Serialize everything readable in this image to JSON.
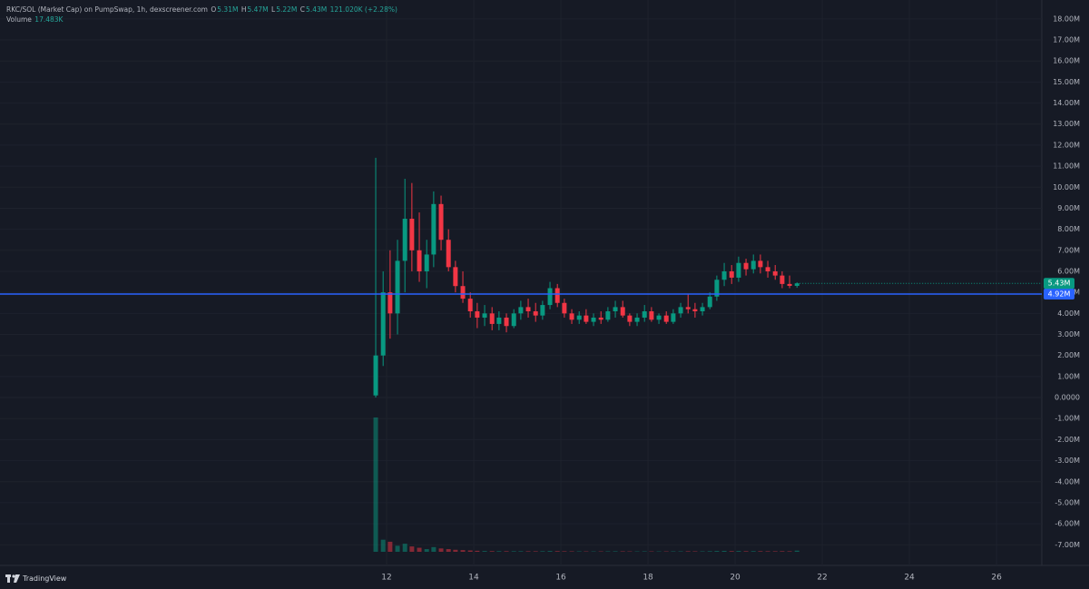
{
  "header": {
    "symbol": "RKC/SOL (Market Cap) on PumpSwap, 1h, dexscreener.com",
    "o_label": "O",
    "open": "5.31M",
    "h_label": "H",
    "high": "5.47M",
    "l_label": "L",
    "low": "5.22M",
    "c_label": "C",
    "close": "5.43M",
    "change": "121.020K (+2.28%)",
    "volume_label": "Volume",
    "volume": "17.483K"
  },
  "footer": {
    "brand": "TradingView"
  },
  "chart_data": {
    "type": "candlestick",
    "x": [
      11.75,
      11.92,
      12.08,
      12.25,
      12.42,
      12.58,
      12.75,
      12.92,
      13.08,
      13.25,
      13.42,
      13.58,
      13.75,
      13.92,
      14.08,
      14.25,
      14.42,
      14.58,
      14.75,
      14.92,
      15.08,
      15.25,
      15.42,
      15.58,
      15.75,
      15.92,
      16.08,
      16.25,
      16.42,
      16.58,
      16.75,
      16.92,
      17.08,
      17.25,
      17.42,
      17.58,
      17.75,
      17.92,
      18.08,
      18.25,
      18.42,
      18.58,
      18.75,
      18.92,
      19.08,
      19.25,
      19.42,
      19.58,
      19.75,
      19.92,
      20.08,
      20.25,
      20.42,
      20.58,
      20.75,
      20.92,
      21.08,
      21.25,
      21.42
    ],
    "open": [
      0.1,
      2,
      5,
      4,
      6.5,
      8.5,
      7,
      6,
      6.8,
      9.2,
      7.5,
      6.2,
      5.3,
      4.7,
      4.1,
      3.8,
      4,
      3.5,
      3.8,
      3.4,
      4,
      4.3,
      4.1,
      3.9,
      4.4,
      5.2,
      4.5,
      4,
      3.7,
      3.9,
      3.6,
      3.8,
      3.7,
      4.1,
      4.3,
      3.9,
      3.6,
      3.8,
      4.1,
      3.7,
      3.9,
      3.6,
      4,
      4.3,
      4.2,
      4.1,
      4.3,
      4.8,
      5.6,
      6,
      5.7,
      6.4,
      6.1,
      6.5,
      6.2,
      6,
      5.8,
      5.4,
      5.31
    ],
    "high": [
      11.4,
      6,
      7,
      7.5,
      10.4,
      10.2,
      8.8,
      7.5,
      9.8,
      9.6,
      8,
      6.5,
      6,
      5,
      4.5,
      4.4,
      4.3,
      4.1,
      4,
      4.2,
      4.6,
      4.7,
      4.5,
      4.6,
      5.5,
      5.4,
      4.7,
      4.2,
      4.1,
      4.2,
      4,
      4.1,
      4.3,
      4.6,
      4.6,
      4,
      4,
      4.4,
      4.3,
      4,
      4.1,
      4.2,
      4.5,
      4.9,
      4.5,
      4.5,
      5,
      5.8,
      6.4,
      6.3,
      6.7,
      6.6,
      6.8,
      6.8,
      6.5,
      6.3,
      6,
      5.8,
      5.47
    ],
    "low": [
      0,
      1.5,
      2.8,
      3,
      5,
      6,
      5.5,
      5.2,
      6.2,
      7,
      6,
      5,
      4.5,
      3.8,
      3.3,
      3.4,
      3.2,
      3.2,
      3.1,
      3.3,
      3.7,
      3.8,
      3.6,
      3.7,
      4.2,
      4.3,
      3.8,
      3.5,
      3.5,
      3.5,
      3.4,
      3.5,
      3.6,
      3.8,
      3.8,
      3.4,
      3.4,
      3.6,
      3.6,
      3.5,
      3.5,
      3.5,
      3.8,
      4,
      3.8,
      3.9,
      4.2,
      4.6,
      5.3,
      5.4,
      5.5,
      5.8,
      5.9,
      5.9,
      5.7,
      5.6,
      5.2,
      5.2,
      5.22
    ],
    "close": [
      2,
      5,
      4,
      6.5,
      8.5,
      7,
      6,
      6.8,
      9.2,
      7.5,
      6.2,
      5.3,
      4.7,
      4.1,
      3.8,
      4,
      3.5,
      3.8,
      3.4,
      4,
      4.3,
      4.1,
      3.9,
      4.4,
      5.2,
      4.5,
      4,
      3.7,
      3.9,
      3.6,
      3.8,
      3.7,
      4.1,
      4.3,
      3.9,
      3.6,
      3.8,
      4.1,
      3.7,
      3.9,
      3.6,
      4,
      4.3,
      4.2,
      4.1,
      4.3,
      4.8,
      5.6,
      6,
      5.7,
      6.4,
      6.1,
      6.5,
      6.2,
      6,
      5.8,
      5.4,
      5.31,
      5.43
    ],
    "volume": [
      2000,
      180,
      150,
      90,
      120,
      80,
      60,
      40,
      70,
      50,
      40,
      30,
      25,
      20,
      15,
      12,
      10,
      10,
      9,
      9,
      9,
      8,
      8,
      9,
      12,
      10,
      8,
      7,
      7,
      6,
      6,
      6,
      7,
      8,
      7,
      6,
      6,
      7,
      6,
      6,
      6,
      7,
      7,
      8,
      7,
      7,
      9,
      12,
      14,
      10,
      12,
      9,
      10,
      9,
      8,
      8,
      9,
      8,
      17.483
    ],
    "up_color": "#089981",
    "down_color": "#f23645",
    "xlim": [
      3.125,
      27.04
    ],
    "xticks": [
      12,
      14,
      16,
      18,
      20,
      22,
      24,
      26
    ],
    "ylim": [
      -7.98,
      18.9
    ],
    "yticks": [
      {
        "value": 18,
        "label": "18.00M"
      },
      {
        "value": 17,
        "label": "17.00M"
      },
      {
        "value": 16,
        "label": "16.00M"
      },
      {
        "value": 15,
        "label": "15.00M"
      },
      {
        "value": 14,
        "label": "14.00M"
      },
      {
        "value": 13,
        "label": "13.00M"
      },
      {
        "value": 12,
        "label": "12.00M"
      },
      {
        "value": 11,
        "label": "11.00M"
      },
      {
        "value": 10,
        "label": "10.00M"
      },
      {
        "value": 9,
        "label": "9.00M"
      },
      {
        "value": 8,
        "label": "8.00M"
      },
      {
        "value": 7,
        "label": "7.00M"
      },
      {
        "value": 6,
        "label": "6.00M"
      },
      {
        "value": 5,
        "label": "5.00M"
      },
      {
        "value": 4,
        "label": "4.00M"
      },
      {
        "value": 3,
        "label": "3.00M"
      },
      {
        "value": 2,
        "label": "2.00M"
      },
      {
        "value": 1,
        "label": "1.00M"
      },
      {
        "value": 0,
        "label": "0.0000"
      },
      {
        "value": -1,
        "label": "-1.00M"
      },
      {
        "value": -2,
        "label": "-2.00M"
      },
      {
        "value": -3,
        "label": "-3.00M"
      },
      {
        "value": -4,
        "label": "-4.00M"
      },
      {
        "value": -5,
        "label": "-5.00M"
      },
      {
        "value": -6,
        "label": "-6.00M"
      },
      {
        "value": -7,
        "label": "-7.00M"
      }
    ],
    "grid": true,
    "price_line": {
      "value": 4.92,
      "label": "4.92M",
      "color": "#2962ff"
    },
    "last_price": {
      "value": 5.43,
      "label": "5.43M"
    }
  }
}
